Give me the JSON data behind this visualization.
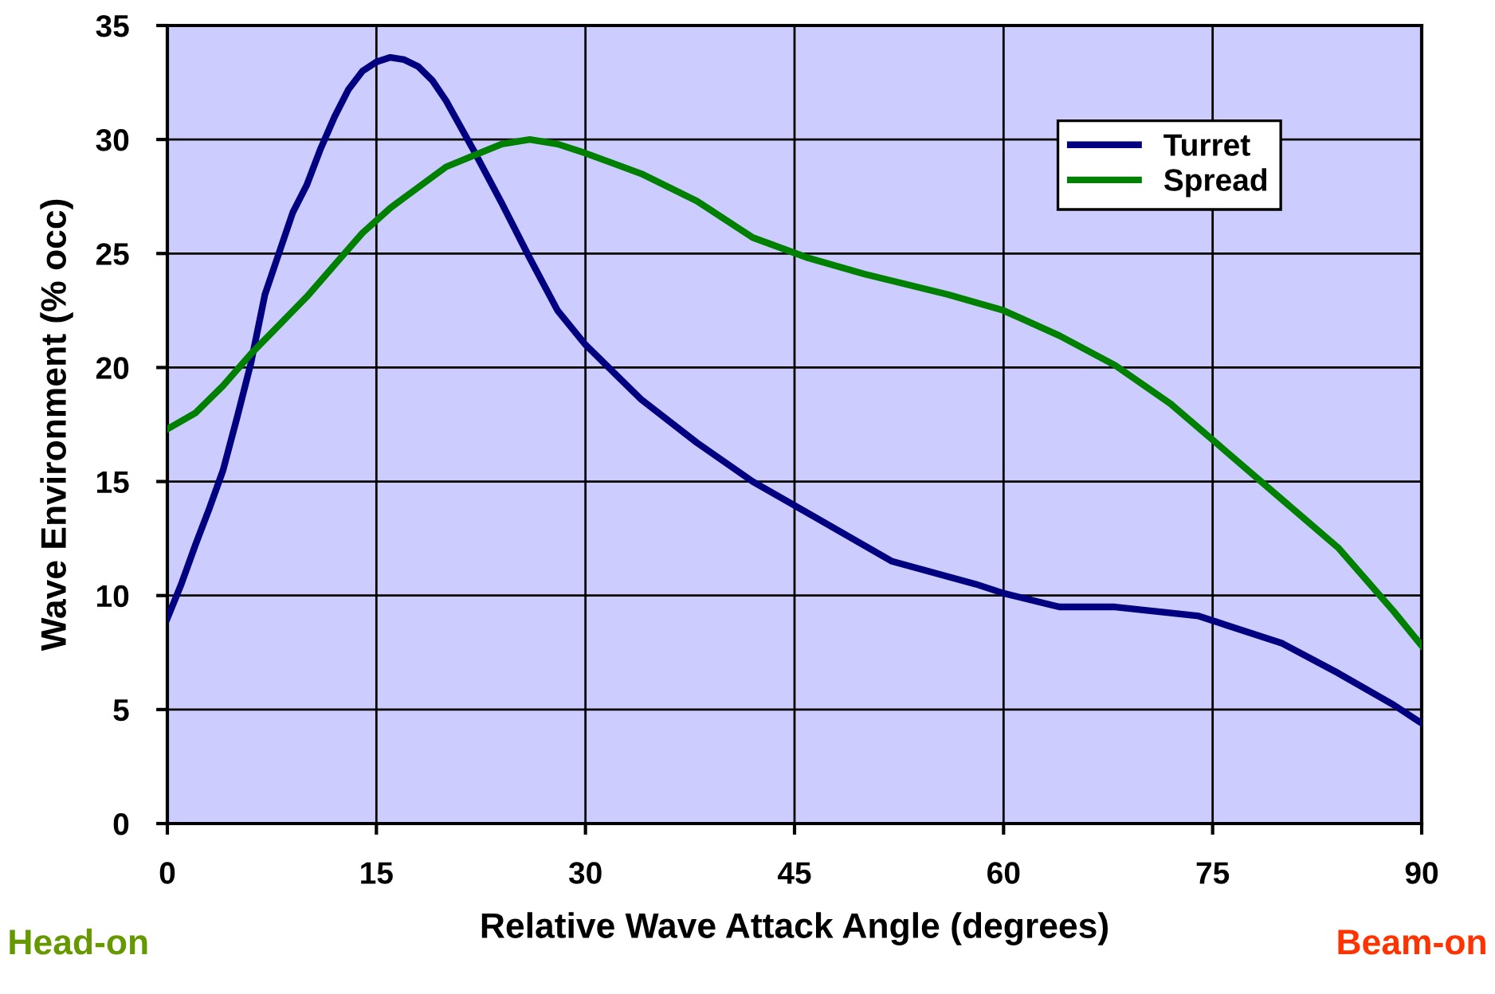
{
  "chart_data": {
    "type": "line",
    "xlabel": "Relative Wave Attack Angle (degrees)",
    "ylabel": "Wave Environment (% occ)",
    "xlim": [
      0,
      90
    ],
    "xticks": [
      0,
      15,
      30,
      45,
      60,
      75,
      90
    ],
    "ylim": [
      0,
      35
    ],
    "yticks": [
      0,
      5,
      10,
      15,
      20,
      25,
      30,
      35
    ],
    "grid": true,
    "legend": "top right",
    "marker": "none",
    "line_style": "solid",
    "annotations": [
      "Head-on",
      "Beam-on"
    ],
    "series": [
      {
        "name": "Turret",
        "color": "#000080",
        "x": [
          0,
          1,
          2,
          3,
          4,
          5,
          6,
          7,
          8,
          9,
          10,
          11,
          12,
          13,
          14,
          15,
          16,
          17,
          18,
          19,
          20,
          21,
          22,
          24,
          26,
          28,
          30,
          32,
          34,
          38,
          42,
          46,
          52,
          58,
          60,
          64,
          68,
          74,
          76,
          80,
          84,
          88,
          90
        ],
        "values": [
          9.0,
          10.5,
          12.2,
          13.8,
          15.5,
          17.8,
          20.2,
          23.2,
          25.0,
          26.8,
          28.0,
          29.6,
          31.0,
          32.2,
          33.0,
          33.4,
          33.6,
          33.5,
          33.2,
          32.6,
          31.7,
          30.6,
          29.5,
          27.2,
          24.8,
          22.5,
          21.0,
          19.8,
          18.6,
          16.7,
          15.0,
          13.6,
          11.5,
          10.5,
          10.1,
          9.5,
          9.5,
          9.1,
          8.7,
          7.9,
          6.6,
          5.2,
          4.4
        ]
      },
      {
        "name": "Spread",
        "color": "#008000",
        "x": [
          0,
          2,
          4,
          6,
          10,
          12,
          14,
          16,
          18,
          20,
          22,
          24,
          26,
          28,
          30,
          34,
          38,
          42,
          46,
          50,
          56,
          60,
          64,
          68,
          72,
          76,
          80,
          84,
          88,
          90
        ],
        "values": [
          17.3,
          18.0,
          19.2,
          20.6,
          23.1,
          24.5,
          25.9,
          27.0,
          27.9,
          28.8,
          29.3,
          29.8,
          30.0,
          29.8,
          29.4,
          28.5,
          27.3,
          25.7,
          24.8,
          24.1,
          23.2,
          22.5,
          21.4,
          20.1,
          18.4,
          16.3,
          14.2,
          12.1,
          9.3,
          7.8
        ]
      }
    ]
  }
}
